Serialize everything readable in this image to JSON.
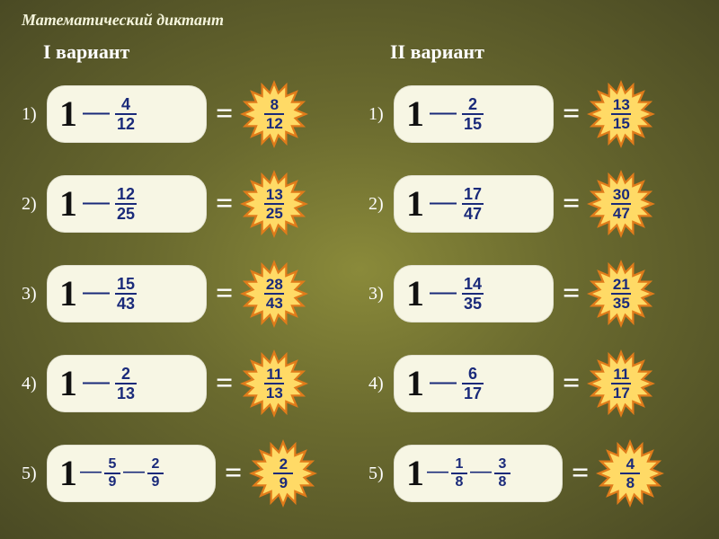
{
  "title": "Математический диктант",
  "variant_labels": {
    "left": "I вариант",
    "right": "II вариант"
  },
  "row_numbers": [
    "1)",
    "2)",
    "3)",
    "4)",
    "5)"
  ],
  "colors": {
    "pill_bg": "#f7f6e4",
    "fraction_color": "#1a2a7a",
    "burst_outer": "#e07b1a",
    "burst_inner": "#ffda66",
    "text_light": "#ffffff"
  },
  "left": [
    {
      "type": "single",
      "sub": {
        "n": "4",
        "d": "12"
      },
      "ans": {
        "n": "8",
        "d": "12"
      }
    },
    {
      "type": "single",
      "sub": {
        "n": "12",
        "d": "25"
      },
      "ans": {
        "n": "13",
        "d": "25"
      }
    },
    {
      "type": "single",
      "sub": {
        "n": "15",
        "d": "43"
      },
      "ans": {
        "n": "28",
        "d": "43"
      }
    },
    {
      "type": "single",
      "sub": {
        "n": "2",
        "d": "13"
      },
      "ans": {
        "n": "11",
        "d": "13"
      }
    },
    {
      "type": "double",
      "sub1": {
        "n": "5",
        "d": "9"
      },
      "sub2": {
        "n": "2",
        "d": "9"
      },
      "ans": {
        "n": "2",
        "d": "9"
      }
    }
  ],
  "right": [
    {
      "type": "single",
      "sub": {
        "n": "2",
        "d": "15"
      },
      "ans": {
        "n": "13",
        "d": "15"
      }
    },
    {
      "type": "single",
      "sub": {
        "n": "17",
        "d": "47"
      },
      "ans": {
        "n": "30",
        "d": "47"
      }
    },
    {
      "type": "single",
      "sub": {
        "n": "14",
        "d": "35"
      },
      "ans": {
        "n": "21",
        "d": "35"
      }
    },
    {
      "type": "single",
      "sub": {
        "n": "6",
        "d": "17"
      },
      "ans": {
        "n": "11",
        "d": "17"
      }
    },
    {
      "type": "double",
      "sub1": {
        "n": "1",
        "d": "8"
      },
      "sub2": {
        "n": "3",
        "d": "8"
      },
      "ans": {
        "n": "4",
        "d": "8"
      }
    }
  ]
}
